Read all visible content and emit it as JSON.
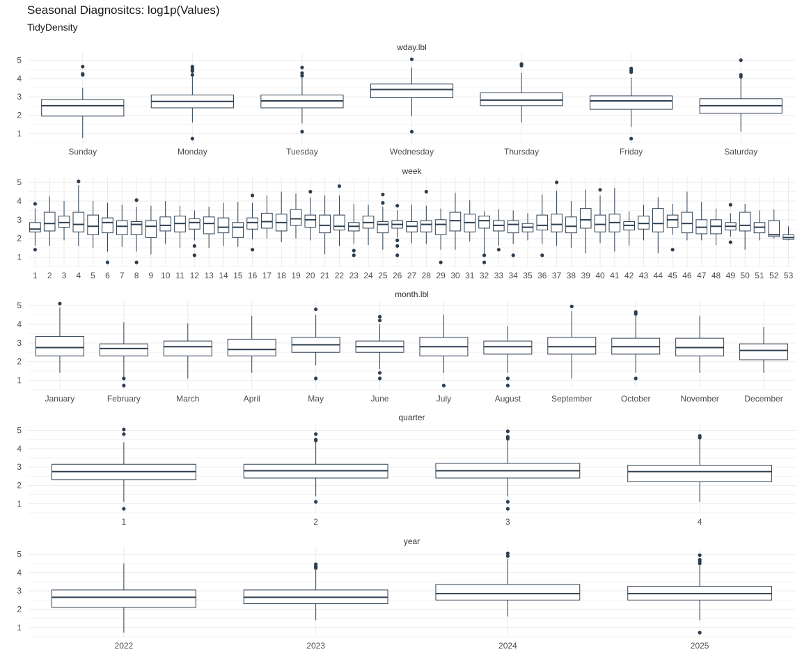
{
  "title": "Seasonal Diagnositcs: log1p(Values)",
  "subtitle": "TidyDensity",
  "colors": {
    "box": "#2c3e50",
    "grid_major": "#ebebeb",
    "grid_minor": "#f3f3f3"
  },
  "chart_data": [
    {
      "type": "boxplot",
      "facet": "wday.lbl",
      "ylim": [
        0.5,
        5.4
      ],
      "y_ticks": [
        1,
        2,
        3,
        4,
        5
      ],
      "categories": [
        "Sunday",
        "Monday",
        "Tuesday",
        "Wednesday",
        "Thursday",
        "Friday",
        "Saturday"
      ],
      "boxes": [
        {
          "lw": 0.75,
          "q1": 1.95,
          "med": 2.52,
          "q3": 2.85,
          "uw": 3.5,
          "out": [
            4.2,
            4.25,
            4.65
          ]
        },
        {
          "lw": 1.6,
          "q1": 2.4,
          "med": 2.75,
          "q3": 3.1,
          "uw": 4.1,
          "out": [
            0.72,
            4.2,
            4.4,
            4.5,
            4.6,
            4.65
          ]
        },
        {
          "lw": 1.55,
          "q1": 2.4,
          "med": 2.78,
          "q3": 3.1,
          "uw": 4.05,
          "out": [
            1.1,
            4.15,
            4.3,
            4.6
          ]
        },
        {
          "lw": 1.95,
          "q1": 2.95,
          "med": 3.4,
          "q3": 3.7,
          "uw": 4.6,
          "out": [
            1.1,
            5.05
          ]
        },
        {
          "lw": 1.6,
          "q1": 2.52,
          "med": 2.82,
          "q3": 3.22,
          "uw": 4.3,
          "out": [
            4.7,
            4.75,
            4.8
          ]
        },
        {
          "lw": 1.35,
          "q1": 2.32,
          "med": 2.78,
          "q3": 3.05,
          "uw": 4.05,
          "out": [
            0.72,
            4.35,
            4.45,
            4.55
          ]
        },
        {
          "lw": 1.1,
          "q1": 2.1,
          "med": 2.52,
          "q3": 2.9,
          "uw": 4.05,
          "out": [
            4.1,
            4.2,
            5.0
          ]
        }
      ]
    },
    {
      "type": "boxplot",
      "facet": "week",
      "ylim": [
        0.5,
        5.3
      ],
      "y_ticks": [
        1,
        2,
        3,
        4,
        5
      ],
      "categories": [
        "1",
        "2",
        "3",
        "4",
        "5",
        "6",
        "7",
        "8",
        "9",
        "10",
        "11",
        "12",
        "13",
        "14",
        "15",
        "16",
        "17",
        "18",
        "19",
        "20",
        "21",
        "22",
        "23",
        "24",
        "25",
        "26",
        "27",
        "28",
        "29",
        "30",
        "31",
        "32",
        "33",
        "34",
        "35",
        "36",
        "37",
        "38",
        "39",
        "40",
        "41",
        "42",
        "43",
        "44",
        "45",
        "46",
        "47",
        "48",
        "49",
        "50",
        "51",
        "52",
        "53"
      ],
      "boxes": [
        {
          "lw": 1.6,
          "q1": 2.35,
          "med": 2.5,
          "q3": 2.85,
          "uw": 3.6,
          "out": [
            1.4,
            3.85
          ]
        },
        {
          "lw": 1.6,
          "q1": 2.4,
          "med": 2.8,
          "q3": 3.4,
          "uw": 4.25,
          "out": []
        },
        {
          "lw": 1.9,
          "q1": 2.6,
          "med": 2.85,
          "q3": 3.2,
          "uw": 4.0,
          "out": []
        },
        {
          "lw": 1.6,
          "q1": 2.35,
          "med": 2.75,
          "q3": 3.4,
          "uw": 4.85,
          "out": [
            5.05
          ]
        },
        {
          "lw": 1.5,
          "q1": 2.2,
          "med": 2.65,
          "q3": 3.25,
          "uw": 4.0,
          "out": []
        },
        {
          "lw": 1.3,
          "q1": 2.3,
          "med": 2.85,
          "q3": 3.1,
          "uw": 3.9,
          "out": [
            0.72
          ]
        },
        {
          "lw": 1.55,
          "q1": 2.2,
          "med": 2.65,
          "q3": 2.95,
          "uw": 3.8,
          "out": []
        },
        {
          "lw": 1.3,
          "q1": 2.2,
          "med": 2.75,
          "q3": 2.9,
          "uw": 3.7,
          "out": [
            0.72,
            4.05
          ]
        },
        {
          "lw": 1.15,
          "q1": 2.05,
          "med": 2.65,
          "q3": 2.95,
          "uw": 3.75,
          "out": []
        },
        {
          "lw": 1.7,
          "q1": 2.4,
          "med": 2.7,
          "q3": 3.15,
          "uw": 4.0,
          "out": []
        },
        {
          "lw": 1.5,
          "q1": 2.35,
          "med": 2.8,
          "q3": 3.2,
          "uw": 3.75,
          "out": []
        },
        {
          "lw": 1.9,
          "q1": 2.5,
          "med": 2.85,
          "q3": 3.05,
          "uw": 3.5,
          "out": [
            1.1,
            1.6
          ]
        },
        {
          "lw": 1.5,
          "q1": 2.25,
          "med": 2.8,
          "q3": 3.15,
          "uw": 3.7,
          "out": []
        },
        {
          "lw": 1.6,
          "q1": 2.3,
          "med": 2.6,
          "q3": 3.1,
          "uw": 3.9,
          "out": []
        },
        {
          "lw": 1.55,
          "q1": 2.05,
          "med": 2.6,
          "q3": 2.85,
          "uw": 3.95,
          "out": []
        },
        {
          "lw": 1.95,
          "q1": 2.5,
          "med": 2.85,
          "q3": 3.1,
          "uw": 3.9,
          "out": [
            1.4,
            4.3
          ]
        },
        {
          "lw": 2.0,
          "q1": 2.55,
          "med": 2.9,
          "q3": 3.35,
          "uw": 4.3,
          "out": []
        },
        {
          "lw": 1.8,
          "q1": 2.4,
          "med": 2.85,
          "q3": 3.3,
          "uw": 4.5,
          "out": []
        },
        {
          "lw": 2.0,
          "q1": 2.7,
          "med": 3.05,
          "q3": 3.55,
          "uw": 4.4,
          "out": []
        },
        {
          "lw": 1.9,
          "q1": 2.6,
          "med": 3.0,
          "q3": 3.25,
          "uw": 4.2,
          "out": [
            4.5
          ]
        },
        {
          "lw": 1.15,
          "q1": 2.3,
          "med": 2.7,
          "q3": 3.25,
          "uw": 4.3,
          "out": []
        },
        {
          "lw": 1.6,
          "q1": 2.45,
          "med": 2.65,
          "q3": 3.25,
          "uw": 4.3,
          "out": [
            4.8
          ]
        },
        {
          "lw": 1.7,
          "q1": 2.4,
          "med": 2.65,
          "q3": 2.85,
          "uw": 3.85,
          "out": [
            1.1,
            1.35
          ]
        },
        {
          "lw": 1.65,
          "q1": 2.55,
          "med": 2.85,
          "q3": 3.2,
          "uw": 3.8,
          "out": []
        },
        {
          "lw": 1.4,
          "q1": 2.3,
          "med": 2.75,
          "q3": 2.9,
          "uw": 3.7,
          "out": [
            3.9,
            4.35
          ]
        },
        {
          "lw": 2.05,
          "q1": 2.55,
          "med": 2.75,
          "q3": 2.95,
          "uw": 3.5,
          "out": [
            1.1,
            1.6,
            1.9,
            3.75
          ]
        },
        {
          "lw": 1.75,
          "q1": 2.35,
          "med": 2.65,
          "q3": 2.9,
          "uw": 3.8,
          "out": []
        },
        {
          "lw": 1.7,
          "q1": 2.35,
          "med": 2.75,
          "q3": 2.95,
          "uw": 3.75,
          "out": [
            4.5
          ]
        },
        {
          "lw": 1.4,
          "q1": 2.2,
          "med": 2.75,
          "q3": 3.0,
          "uw": 3.6,
          "out": [
            0.72
          ]
        },
        {
          "lw": 1.4,
          "q1": 2.4,
          "med": 2.95,
          "q3": 3.4,
          "uw": 4.45,
          "out": []
        },
        {
          "lw": 1.85,
          "q1": 2.35,
          "med": 2.85,
          "q3": 3.3,
          "uw": 4.05,
          "out": []
        },
        {
          "lw": 1.2,
          "q1": 2.55,
          "med": 2.95,
          "q3": 3.2,
          "uw": 3.45,
          "out": [
            0.72,
            1.1
          ]
        },
        {
          "lw": 1.6,
          "q1": 2.4,
          "med": 2.7,
          "q3": 2.95,
          "uw": 3.55,
          "out": [
            1.4
          ]
        },
        {
          "lw": 1.7,
          "q1": 2.3,
          "med": 2.75,
          "q3": 2.95,
          "uw": 3.5,
          "out": [
            1.1
          ]
        },
        {
          "lw": 1.9,
          "q1": 2.35,
          "med": 2.6,
          "q3": 2.8,
          "uw": 3.35,
          "out": []
        },
        {
          "lw": 1.7,
          "q1": 2.45,
          "med": 2.7,
          "q3": 3.25,
          "uw": 4.35,
          "out": [
            1.1
          ]
        },
        {
          "lw": 1.6,
          "q1": 2.35,
          "med": 2.75,
          "q3": 3.3,
          "uw": 4.55,
          "out": [
            5.0
          ]
        },
        {
          "lw": 1.5,
          "q1": 2.3,
          "med": 2.65,
          "q3": 3.15,
          "uw": 4.0,
          "out": []
        },
        {
          "lw": 1.2,
          "q1": 2.55,
          "med": 3.0,
          "q3": 3.6,
          "uw": 4.6,
          "out": []
        },
        {
          "lw": 1.75,
          "q1": 2.35,
          "med": 2.75,
          "q3": 3.25,
          "uw": 4.3,
          "out": [
            4.6
          ]
        },
        {
          "lw": 1.3,
          "q1": 2.35,
          "med": 2.85,
          "q3": 3.3,
          "uw": 4.7,
          "out": []
        },
        {
          "lw": 1.6,
          "q1": 2.45,
          "med": 2.7,
          "q3": 2.9,
          "uw": 3.45,
          "out": []
        },
        {
          "lw": 1.9,
          "q1": 2.5,
          "med": 2.8,
          "q3": 3.2,
          "uw": 3.8,
          "out": []
        },
        {
          "lw": 1.2,
          "q1": 2.35,
          "med": 2.8,
          "q3": 3.6,
          "uw": 4.2,
          "out": []
        },
        {
          "lw": 2.2,
          "q1": 2.6,
          "med": 3.0,
          "q3": 3.25,
          "uw": 3.85,
          "out": [
            1.4
          ]
        },
        {
          "lw": 1.9,
          "q1": 2.3,
          "med": 2.8,
          "q3": 3.4,
          "uw": 4.5,
          "out": []
        },
        {
          "lw": 1.9,
          "q1": 2.25,
          "med": 2.6,
          "q3": 3.0,
          "uw": 3.95,
          "out": []
        },
        {
          "lw": 1.65,
          "q1": 2.25,
          "med": 2.65,
          "q3": 3.0,
          "uw": 3.6,
          "out": []
        },
        {
          "lw": 2.1,
          "q1": 2.45,
          "med": 2.65,
          "q3": 2.85,
          "uw": 3.35,
          "out": [
            1.8,
            3.8
          ]
        },
        {
          "lw": 1.4,
          "q1": 2.4,
          "med": 2.7,
          "q3": 3.4,
          "uw": 3.85,
          "out": []
        },
        {
          "lw": 1.9,
          "q1": 2.3,
          "med": 2.6,
          "q3": 2.85,
          "uw": 3.5,
          "out": []
        },
        {
          "lw": 2.0,
          "q1": 2.1,
          "med": 2.2,
          "q3": 2.95,
          "uw": 3.55,
          "out": []
        },
        {
          "lw": 1.9,
          "q1": 1.95,
          "med": 2.05,
          "q3": 2.2,
          "uw": 2.65,
          "out": []
        }
      ]
    },
    {
      "type": "boxplot",
      "facet": "month.lbl",
      "ylim": [
        0.5,
        5.3
      ],
      "y_ticks": [
        1,
        2,
        3,
        4,
        5
      ],
      "categories": [
        "January",
        "February",
        "March",
        "April",
        "May",
        "June",
        "July",
        "August",
        "September",
        "October",
        "November",
        "December"
      ],
      "boxes": [
        {
          "lw": 1.4,
          "q1": 2.3,
          "med": 2.75,
          "q3": 3.35,
          "uw": 4.9,
          "out": [
            5.1
          ]
        },
        {
          "lw": 1.2,
          "q1": 2.3,
          "med": 2.7,
          "q3": 2.95,
          "uw": 4.1,
          "out": [
            0.72,
            1.1
          ]
        },
        {
          "lw": 1.1,
          "q1": 2.3,
          "med": 2.8,
          "q3": 3.1,
          "uw": 4.05,
          "out": []
        },
        {
          "lw": 1.4,
          "q1": 2.3,
          "med": 2.65,
          "q3": 3.2,
          "uw": 4.45,
          "out": []
        },
        {
          "lw": 1.8,
          "q1": 2.5,
          "med": 2.9,
          "q3": 3.3,
          "uw": 4.5,
          "out": [
            1.1,
            4.8
          ]
        },
        {
          "lw": 1.6,
          "q1": 2.5,
          "med": 2.8,
          "q3": 3.1,
          "uw": 4.0,
          "out": [
            1.1,
            1.4,
            4.2,
            4.4
          ]
        },
        {
          "lw": 1.4,
          "q1": 2.3,
          "med": 2.8,
          "q3": 3.3,
          "uw": 4.5,
          "out": [
            0.72
          ]
        },
        {
          "lw": 1.4,
          "q1": 2.4,
          "med": 2.8,
          "q3": 3.1,
          "uw": 3.9,
          "out": [
            0.72,
            1.1
          ]
        },
        {
          "lw": 1.1,
          "q1": 2.4,
          "med": 2.8,
          "q3": 3.3,
          "uw": 4.7,
          "out": [
            4.95
          ]
        },
        {
          "lw": 1.4,
          "q1": 2.4,
          "med": 2.8,
          "q3": 3.25,
          "uw": 4.5,
          "out": [
            1.1,
            4.55,
            4.65
          ]
        },
        {
          "lw": 1.4,
          "q1": 2.3,
          "med": 2.75,
          "q3": 3.25,
          "uw": 4.45,
          "out": []
        },
        {
          "lw": 1.4,
          "q1": 2.1,
          "med": 2.6,
          "q3": 2.95,
          "uw": 3.85,
          "out": []
        }
      ]
    },
    {
      "type": "boxplot",
      "facet": "quarter",
      "ylim": [
        0.5,
        5.4
      ],
      "y_ticks": [
        1,
        2,
        3,
        4,
        5
      ],
      "categories": [
        "1",
        "2",
        "3",
        "4"
      ],
      "boxes": [
        {
          "lw": 1.1,
          "q1": 2.3,
          "med": 2.75,
          "q3": 3.15,
          "uw": 4.35,
          "out": [
            0.72,
            4.8,
            5.05
          ]
        },
        {
          "lw": 1.4,
          "q1": 2.4,
          "med": 2.8,
          "q3": 3.15,
          "uw": 4.4,
          "out": [
            1.1,
            4.45,
            4.5,
            4.8
          ]
        },
        {
          "lw": 1.4,
          "q1": 2.4,
          "med": 2.8,
          "q3": 3.2,
          "uw": 4.45,
          "out": [
            0.72,
            1.1,
            4.55,
            4.65,
            4.95
          ]
        },
        {
          "lw": 1.1,
          "q1": 2.2,
          "med": 2.75,
          "q3": 3.1,
          "uw": 4.5,
          "out": [
            4.6,
            4.65,
            4.7
          ]
        }
      ]
    },
    {
      "type": "boxplot",
      "facet": "year",
      "ylim": [
        0.5,
        5.4
      ],
      "y_ticks": [
        1,
        2,
        3,
        4,
        5
      ],
      "categories": [
        "2022",
        "2023",
        "2024",
        "2025"
      ],
      "boxes": [
        {
          "lw": 0.72,
          "q1": 2.1,
          "med": 2.65,
          "q3": 3.05,
          "uw": 4.5,
          "out": []
        },
        {
          "lw": 1.4,
          "q1": 2.3,
          "med": 2.65,
          "q3": 3.05,
          "uw": 4.15,
          "out": [
            4.25,
            4.3,
            4.35,
            4.45
          ]
        },
        {
          "lw": 1.6,
          "q1": 2.5,
          "med": 2.85,
          "q3": 3.35,
          "uw": 4.75,
          "out": [
            4.9,
            5.05
          ]
        },
        {
          "lw": 1.4,
          "q1": 2.5,
          "med": 2.85,
          "q3": 3.25,
          "uw": 4.4,
          "out": [
            0.72,
            4.5,
            4.6,
            4.7,
            4.95
          ]
        }
      ]
    }
  ]
}
